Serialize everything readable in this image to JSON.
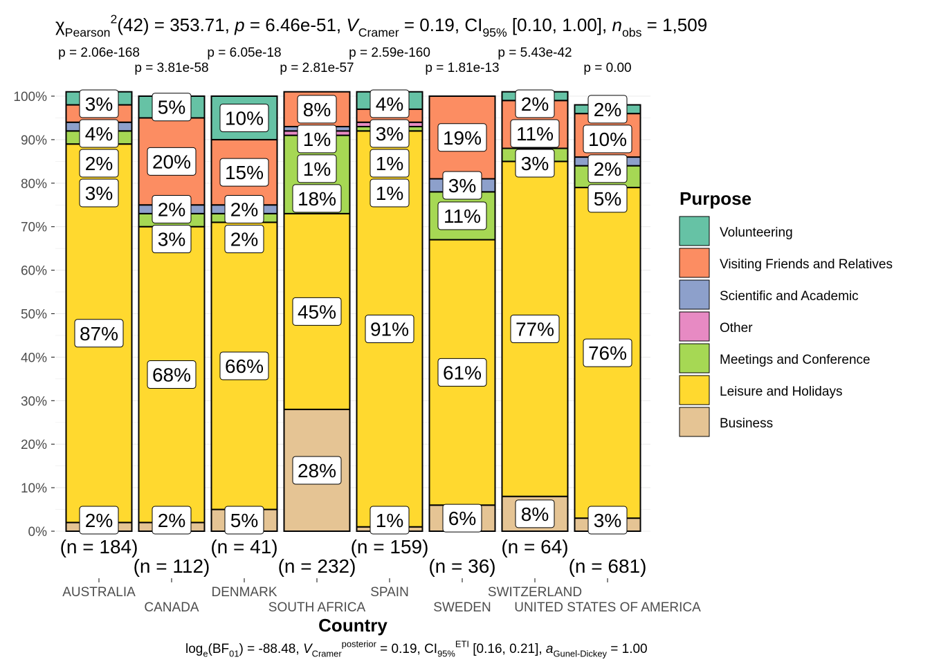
{
  "chart_data": {
    "type": "bar",
    "stacked": true,
    "percent": true,
    "title_parts": [
      {
        "t": "χ",
        "style": "normal"
      },
      {
        "t": "Pearson",
        "style": "sub"
      },
      {
        "t": "2",
        "style": "sup"
      },
      {
        "t": "(42) = 353.71, ",
        "style": "normal"
      },
      {
        "t": "p",
        "style": "italic"
      },
      {
        "t": " = 6.46e-51, ",
        "style": "normal"
      },
      {
        "t": "V",
        "style": "hat"
      },
      {
        "t": "Cramer",
        "style": "sub"
      },
      {
        "t": " = 0.19, CI",
        "style": "normal"
      },
      {
        "t": "95%",
        "style": "sub"
      },
      {
        "t": " [0.10, 1.00], ",
        "style": "normal"
      },
      {
        "t": "n",
        "style": "italic"
      },
      {
        "t": "obs",
        "style": "sub"
      },
      {
        "t": " = 1,509",
        "style": "normal"
      }
    ],
    "caption_parts": [
      {
        "t": "log",
        "style": "normal"
      },
      {
        "t": "e",
        "style": "sub"
      },
      {
        "t": "(BF",
        "style": "normal"
      },
      {
        "t": "01",
        "style": "sub"
      },
      {
        "t": ") = -88.48, ",
        "style": "normal"
      },
      {
        "t": "V",
        "style": "hat"
      },
      {
        "t": "Cramer",
        "style": "sub"
      },
      {
        "t": "posterior",
        "style": "sup"
      },
      {
        "t": " = 0.19, CI",
        "style": "normal"
      },
      {
        "t": "95%",
        "style": "sub"
      },
      {
        "t": "ETI",
        "style": "sup"
      },
      {
        "t": " [0.16, 0.21], ",
        "style": "normal"
      },
      {
        "t": "a",
        "style": "italic"
      },
      {
        "t": "Gunel-Dickey",
        "style": "sub"
      },
      {
        "t": " = 1.00",
        "style": "normal"
      }
    ],
    "xlabel": "Country",
    "ylabel": "",
    "ylim": [
      0,
      100
    ],
    "yticks": [
      "0%",
      "10%",
      "20%",
      "30%",
      "40%",
      "50%",
      "60%",
      "70%",
      "80%",
      "90%",
      "100%"
    ],
    "grid": true,
    "legend": {
      "title": "Purpose",
      "placement": "right"
    },
    "categories": [
      "AUSTRALIA",
      "CANADA",
      "DENMARK",
      "SOUTH AFRICA",
      "SPAIN",
      "SWEDEN",
      "SWITZERLAND",
      "UNITED STATES OF AMERICA"
    ],
    "counts": [
      "(n = 184)",
      "(n = 112)",
      "(n = 41)",
      "(n = 232)",
      "(n = 159)",
      "(n = 36)",
      "(n = 64)",
      "(n = 681)"
    ],
    "pvalues": [
      "p = 2.06e-168",
      "p = 3.81e-58",
      "p = 6.05e-18",
      "p = 2.81e-57",
      "p = 2.59e-160",
      "p = 1.81e-13",
      "p = 5.43e-42",
      "p = 0.00"
    ],
    "series": [
      {
        "name": "Business",
        "color": "#E5C494",
        "values": [
          2,
          2,
          5,
          28,
          1,
          6,
          8,
          3
        ]
      },
      {
        "name": "Leisure and Holidays",
        "color": "#FFD92F",
        "values": [
          87,
          68,
          66,
          45,
          91,
          61,
          77,
          76
        ]
      },
      {
        "name": "Meetings and Conference",
        "color": "#A6D854",
        "values": [
          3,
          3,
          2,
          18,
          1,
          11,
          3,
          5
        ]
      },
      {
        "name": "Other",
        "color": "#E78AC3",
        "values": [
          0,
          0,
          0,
          1,
          1,
          0,
          0,
          0
        ]
      },
      {
        "name": "Scientific and Academic",
        "color": "#8DA0CB",
        "values": [
          2,
          2,
          2,
          1,
          0,
          3,
          0,
          2
        ]
      },
      {
        "name": "Visiting Friends and Relatives",
        "color": "#FC8D62",
        "values": [
          4,
          20,
          15,
          8,
          3,
          19,
          11,
          10
        ]
      },
      {
        "name": "Volunteering",
        "color": "#66C2A5",
        "values": [
          3,
          5,
          10,
          0,
          4,
          0,
          2,
          2
        ]
      }
    ]
  }
}
